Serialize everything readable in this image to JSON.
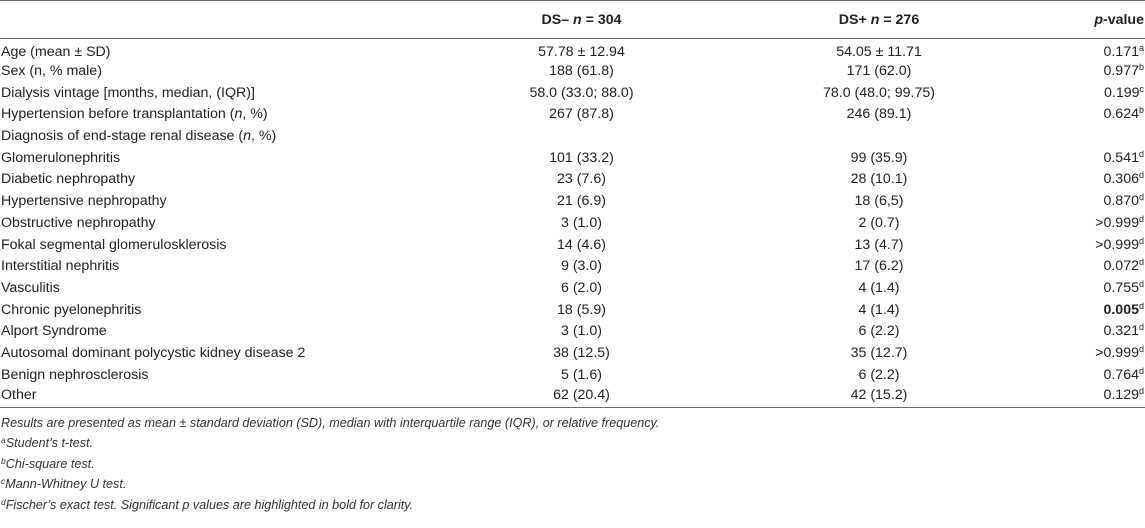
{
  "header": {
    "col1": "",
    "col2_prefix": "DS– ",
    "col2_n": "n",
    "col2_suffix": " = 304",
    "col3_prefix": "DS+ ",
    "col3_n": "n",
    "col3_suffix": " = 276",
    "col4_p": "p",
    "col4_suffix": "-value"
  },
  "rows": [
    {
      "label": "Age (mean ± SD)",
      "ds_neg": "57.78 ± 12.94",
      "ds_pos": "54.05 ± 11.71",
      "p": "0.171",
      "sup": "a",
      "bold": false
    },
    {
      "label": "Sex (n, % male)",
      "ds_neg": "188 (61.8)",
      "ds_pos": "171 (62.0)",
      "p": "0.977",
      "sup": "b",
      "bold": false
    },
    {
      "label": "Dialysis vintage [months, median, (IQR)]",
      "ds_neg": "58.0 (33.0; 88.0)",
      "ds_pos": "78.0 (48.0; 99.75)",
      "p": "0.199",
      "sup": "c",
      "bold": false
    },
    {
      "label_pre": "Hypertension before transplantation (",
      "label_it": "n",
      "label_post": ", %)",
      "ds_neg": "267 (87.8)",
      "ds_pos": "246 (89.1)",
      "p": "0.624",
      "sup": "b",
      "bold": false
    },
    {
      "label_pre": "Diagnosis of end-stage renal disease (",
      "label_it": "n",
      "label_post": ", %)",
      "ds_neg": "",
      "ds_pos": "",
      "p": "",
      "sup": "",
      "bold": false
    },
    {
      "label": "Glomerulonephritis",
      "ds_neg": "101 (33.2)",
      "ds_pos": "99 (35.9)",
      "p": "0.541",
      "sup": "d",
      "bold": false
    },
    {
      "label": "Diabetic nephropathy",
      "ds_neg": "23 (7.6)",
      "ds_pos": "28 (10.1)",
      "p": "0.306",
      "sup": "d",
      "bold": false
    },
    {
      "label": "Hypertensive nephropathy",
      "ds_neg": "21 (6.9)",
      "ds_pos": "18 (6,5)",
      "p": "0.870",
      "sup": "d",
      "bold": false
    },
    {
      "label": "Obstructive nephropathy",
      "ds_neg": "3 (1.0)",
      "ds_pos": "2 (0.7)",
      "p": ">0.999",
      "sup": "d",
      "bold": false
    },
    {
      "label": "Fokal segmental glomerulosklerosis",
      "ds_neg": "14 (4.6)",
      "ds_pos": "13 (4.7)",
      "p": ">0.999",
      "sup": "d",
      "bold": false
    },
    {
      "label": "Interstitial nephritis",
      "ds_neg": "9 (3.0)",
      "ds_pos": "17 (6.2)",
      "p": "0.072",
      "sup": "d",
      "bold": false
    },
    {
      "label": "Vasculitis",
      "ds_neg": "6 (2.0)",
      "ds_pos": "4 (1.4)",
      "p": "0.755",
      "sup": "d",
      "bold": false
    },
    {
      "label": "Chronic pyelonephritis",
      "ds_neg": "18 (5.9)",
      "ds_pos": "4 (1.4)",
      "p": "0.005",
      "sup": "d",
      "bold": true
    },
    {
      "label": "Alport Syndrome",
      "ds_neg": "3 (1.0)",
      "ds_pos": "6 (2.2)",
      "p": "0.321",
      "sup": "d",
      "bold": false
    },
    {
      "label": "Autosomal dominant polycystic kidney disease 2",
      "ds_neg": "38 (12.5)",
      "ds_pos": "35 (12.7)",
      "p": ">0.999",
      "sup": "d",
      "bold": false
    },
    {
      "label": "Benign nephrosclerosis",
      "ds_neg": "5 (1.6)",
      "ds_pos": "6 (2.2)",
      "p": "0.764",
      "sup": "d",
      "bold": false
    },
    {
      "label": "Other",
      "ds_neg": "62 (20.4)",
      "ds_pos": "42 (15.2)",
      "p": "0.129",
      "sup": "d",
      "bold": false
    }
  ],
  "footnotes": {
    "intro": "Results are presented as mean ± standard deviation (SD), median with interquartile range (IQR), or relative frequency.",
    "a_mark": "a",
    "a_text": "Student’s t-test.",
    "b_mark": "b",
    "b_text": "Chi-square test.",
    "c_mark": "c",
    "c_text": "Mann-Whitney U test.",
    "d_mark": "d",
    "d_text": "Fischer’s exact test. Significant p values are highlighted in bold for clarity."
  }
}
